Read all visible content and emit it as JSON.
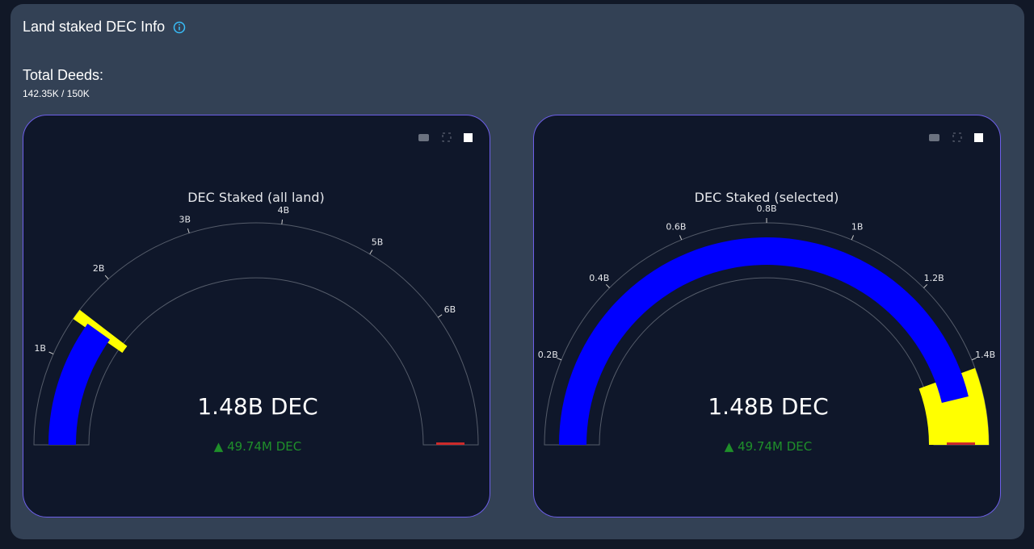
{
  "header": {
    "title": "Land staked DEC Info",
    "deeds_label": "Total Deeds:",
    "deeds_value": "142.35K / 150K"
  },
  "chart_data": [
    {
      "type": "gauge",
      "title": "DEC Staked (all land)",
      "value": 1.48,
      "value_label": "1.48B DEC",
      "delta_label": "▲ 49.74M DEC",
      "ylim": [
        0,
        7.45
      ],
      "yticks": [
        {
          "value": 1,
          "label": "1B"
        },
        {
          "value": 2,
          "label": "2B"
        },
        {
          "value": 3,
          "label": "3B"
        },
        {
          "value": 4,
          "label": "4B"
        },
        {
          "value": 5,
          "label": "5B"
        },
        {
          "value": 6,
          "label": "6B"
        }
      ],
      "bar_color": "#0000ff",
      "steps": [
        {
          "range": [
            1.43,
            1.55
          ],
          "color": "#ffff00"
        }
      ],
      "threshold": 7.45,
      "threshold_color": "#cc2a2a"
    },
    {
      "type": "gauge",
      "title": "DEC Staked (selected)",
      "value": 1.48,
      "value_label": "1.48B DEC",
      "delta_label": "▲ 49.74M DEC",
      "ylim": [
        0,
        1.6
      ],
      "yticks": [
        {
          "value": 0.2,
          "label": "0.2B"
        },
        {
          "value": 0.4,
          "label": "0.4B"
        },
        {
          "value": 0.6,
          "label": "0.6B"
        },
        {
          "value": 0.8,
          "label": "0.8B"
        },
        {
          "value": 1,
          "label": "1B"
        },
        {
          "value": 1.2,
          "label": "1.2B"
        },
        {
          "value": 1.4,
          "label": "1.4B"
        }
      ],
      "bar_color": "#0000ff",
      "steps": [
        {
          "range": [
            1.42,
            1.6
          ],
          "color": "#ffff00"
        }
      ],
      "threshold": 1.6,
      "threshold_color": "#cc2a2a"
    }
  ]
}
